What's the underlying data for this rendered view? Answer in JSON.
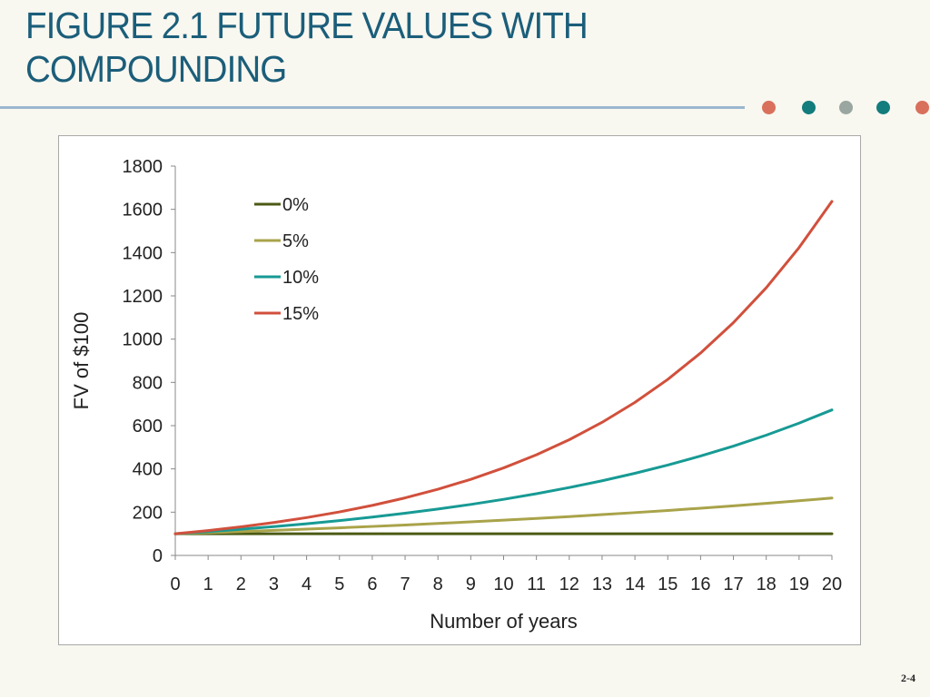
{
  "slide": {
    "title": "FIGURE 2.1 FUTURE VALUES WITH COMPOUNDING",
    "page_number": "2-4",
    "accent_colors": [
      "#d9705b",
      "#137c7c",
      "#9aa6a0",
      "#137c7c",
      "#d9705b"
    ]
  },
  "chart_data": {
    "type": "line",
    "title": "",
    "xlabel": "Number of years",
    "ylabel": "FV of $100",
    "x": [
      0,
      1,
      2,
      3,
      4,
      5,
      6,
      7,
      8,
      9,
      10,
      11,
      12,
      13,
      14,
      15,
      16,
      17,
      18,
      19,
      20
    ],
    "xlim": [
      0,
      20
    ],
    "ylim": [
      0,
      1800
    ],
    "yticks": [
      0,
      200,
      400,
      600,
      800,
      1000,
      1200,
      1400,
      1600,
      1800
    ],
    "grid": false,
    "legend_position": "top-left",
    "series": [
      {
        "name": "0%",
        "color": "#4b5a14",
        "values": [
          100,
          100,
          100,
          100,
          100,
          100,
          100,
          100,
          100,
          100,
          100,
          100,
          100,
          100,
          100,
          100,
          100,
          100,
          100,
          100,
          100
        ]
      },
      {
        "name": "5%",
        "color": "#a9a34a",
        "values": [
          100,
          105,
          110.3,
          115.8,
          121.6,
          127.6,
          134,
          140.7,
          147.7,
          155.1,
          162.9,
          171,
          179.6,
          188.6,
          198,
          207.9,
          218.3,
          229.2,
          240.7,
          252.7,
          265.3
        ]
      },
      {
        "name": "10%",
        "color": "#179a94",
        "values": [
          100,
          110,
          121,
          133.1,
          146.4,
          161.1,
          177.2,
          194.9,
          214.4,
          235.8,
          259.4,
          285.3,
          313.8,
          345.2,
          379.7,
          417.7,
          459.5,
          505.4,
          556,
          611.6,
          672.7
        ]
      },
      {
        "name": "15%",
        "color": "#d1503c",
        "values": [
          100,
          115,
          132.3,
          152.1,
          174.9,
          201.1,
          231.3,
          266,
          305.9,
          351.8,
          404.6,
          465.2,
          535,
          615.3,
          707.6,
          813.7,
          935.8,
          1076.1,
          1237.5,
          1423.2,
          1636.7
        ]
      }
    ]
  }
}
